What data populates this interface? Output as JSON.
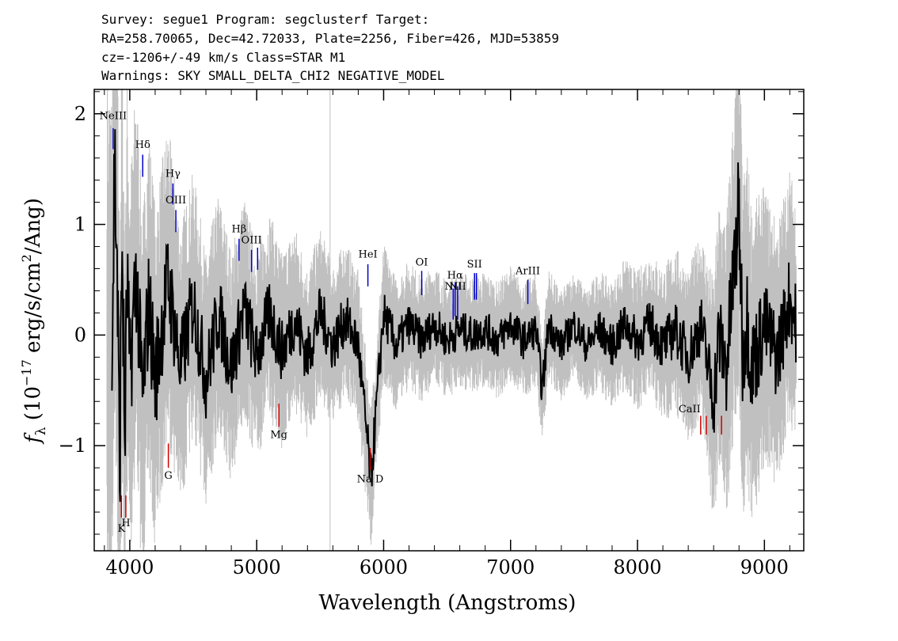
{
  "header": {
    "line1": "Survey: segue1 Program: segclusterf Target:",
    "line2": "RA=258.70065, Dec=42.72033, Plate=2256, Fiber=426, MJD=53859",
    "line3": "cz=-1206+/-49 km/s Class=STAR M1",
    "line4": "Warnings: SKY SMALL_DELTA_CHI2 NEGATIVE_MODEL"
  },
  "chart_data": {
    "type": "line",
    "xlabel": "Wavelength (Angstroms)",
    "ylabel": "f_λ (10^-17 erg/s/cm^2/Ang)",
    "ylabel_parts": {
      "f": "f",
      "sub": "λ",
      "pre": "(10",
      "exp": "−17",
      "mid": " erg/s/cm",
      "exp2": "2",
      "post": "/Ang)"
    },
    "xlim": [
      3720,
      9310
    ],
    "ylim": [
      -1.95,
      2.22
    ],
    "xticks": [
      4000,
      5000,
      6000,
      7000,
      8000,
      9000
    ],
    "xtick_labels": [
      "4000",
      "5000",
      "6000",
      "7000",
      "8000",
      "9000"
    ],
    "yticks": [
      -1,
      0,
      1,
      2
    ],
    "ytick_labels": [
      "−1",
      "0",
      "1",
      "2"
    ],
    "series": [
      {
        "role": "flux",
        "color": "#000000",
        "x": [
          3860,
          3880,
          3900,
          3920,
          3940,
          3960,
          3980,
          4000,
          4050,
          4100,
          4150,
          4200,
          4300,
          4400,
          4500,
          4600,
          4700,
          4800,
          4900,
          5000,
          5100,
          5200,
          5300,
          5400,
          5500,
          5600,
          5700,
          5800,
          5900,
          6000,
          6100,
          6200,
          6300,
          6400,
          6500,
          6600,
          6700,
          6800,
          6900,
          7000,
          7100,
          7200,
          7250,
          7300,
          7400,
          7500,
          7600,
          7700,
          7800,
          7900,
          8000,
          8100,
          8200,
          8300,
          8400,
          8500,
          8600,
          8640,
          8700,
          8800,
          8830,
          8860,
          8900,
          9000,
          9100,
          9200,
          9250
        ],
        "y": [
          -0.2,
          1.6,
          0.7,
          -1.3,
          0.9,
          -1.0,
          0.5,
          -0.4,
          0.6,
          -0.6,
          0.3,
          -0.4,
          0.5,
          -0.3,
          0.3,
          -0.4,
          0.2,
          -0.3,
          0.25,
          -0.2,
          0.2,
          -0.15,
          0.15,
          -0.2,
          0.2,
          -0.1,
          0.15,
          -0.1,
          -1.3,
          0.2,
          -0.1,
          0.1,
          -0.05,
          0.1,
          -0.05,
          0.05,
          0.0,
          0.05,
          -0.05,
          0.1,
          -0.05,
          0.05,
          -0.5,
          0.1,
          -0.1,
          0.1,
          -0.1,
          0.05,
          -0.1,
          0.1,
          -0.05,
          0.1,
          -0.1,
          0.05,
          -0.2,
          0.1,
          -0.6,
          0.0,
          -0.3,
          1.15,
          -0.2,
          0.2,
          -0.3,
          0.1,
          -0.2,
          0.35,
          0.1
        ]
      },
      {
        "role": "error",
        "color": "#c0c0c0",
        "x": [
          3800,
          4000,
          4500,
          5000,
          5500,
          6000,
          6500,
          7000,
          7500,
          8000,
          8500,
          8800,
          9000,
          9300
        ],
        "sigma": [
          2.0,
          1.3,
          0.85,
          0.7,
          0.55,
          0.45,
          0.38,
          0.38,
          0.35,
          0.45,
          0.6,
          1.2,
          0.9,
          0.8
        ]
      }
    ],
    "emission_lines": [
      {
        "label": "NeIII",
        "x": 3869,
        "ytop": 1.87,
        "ybot": 1.68,
        "text_y": 1.95,
        "color": "#0000cc"
      },
      {
        "label": "Hδ",
        "x": 4102,
        "ytop": 1.63,
        "ybot": 1.43,
        "text_y": 1.69,
        "color": "#0000cc"
      },
      {
        "label": "Hγ",
        "x": 4340,
        "ytop": 1.37,
        "ybot": 1.18,
        "text_y": 1.43,
        "color": "#0000cc"
      },
      {
        "label": "OIII",
        "x": 4363,
        "ytop": 1.13,
        "ybot": 0.93,
        "text_y": 1.19,
        "color": "#0000cc"
      },
      {
        "label": "Hβ",
        "x": 4861,
        "ytop": 0.87,
        "ybot": 0.67,
        "text_y": 0.93,
        "color": "#0000cc"
      },
      {
        "label": "OIII",
        "x": 4959,
        "ytop": 0.77,
        "ybot": 0.57,
        "text_y": 0.83,
        "color": "#0000cc"
      },
      {
        "label": "OIII",
        "x": 5007,
        "ytop": 0.79,
        "ybot": 0.59,
        "text_y": null,
        "color": "#0000cc"
      },
      {
        "label": "HeI",
        "x": 5876,
        "ytop": 0.64,
        "ybot": 0.44,
        "text_y": 0.7,
        "color": "#0000cc"
      },
      {
        "label": "OI",
        "x": 6300,
        "ytop": 0.58,
        "ybot": 0.36,
        "text_y": 0.63,
        "color": "#0000cc"
      },
      {
        "label": "NII",
        "x": 6548,
        "ytop": 0.42,
        "ybot": 0.14,
        "text_y": 0.41,
        "color": "#0000cc"
      },
      {
        "label": "Hα",
        "x": 6563,
        "ytop": 0.47,
        "ybot": 0.17,
        "text_y": 0.51,
        "color": "#0000cc"
      },
      {
        "label": "NII",
        "x": 6583,
        "ytop": 0.44,
        "ybot": 0.14,
        "text_y": 0.41,
        "color": "#0000cc"
      },
      {
        "label": "SII",
        "x": 6716,
        "ytop": 0.56,
        "ybot": 0.32,
        "text_y": 0.61,
        "color": "#0000cc"
      },
      {
        "label": "SII",
        "x": 6731,
        "ytop": 0.56,
        "ybot": 0.32,
        "text_y": null,
        "color": "#0000cc"
      },
      {
        "label": "ArIII",
        "x": 7136,
        "ytop": 0.5,
        "ybot": 0.28,
        "text_y": 0.55,
        "color": "#0000cc"
      }
    ],
    "absorption_lines": [
      {
        "label": "K",
        "x": 3934,
        "ytop": -1.45,
        "ybot": -1.65,
        "text_y": -1.78,
        "color": "#cc0000"
      },
      {
        "label": "H",
        "x": 3969,
        "ytop": -1.45,
        "ybot": -1.65,
        "text_y": -1.73,
        "color": "#cc0000"
      },
      {
        "label": "G",
        "x": 4304,
        "ytop": -0.98,
        "ybot": -1.2,
        "text_y": -1.3,
        "color": "#cc0000"
      },
      {
        "label": "Mg",
        "x": 5175,
        "ytop": -0.62,
        "ybot": -0.83,
        "text_y": -0.93,
        "color": "#cc0000"
      },
      {
        "label": "Na D",
        "x": 5894,
        "ytop": -1.02,
        "ybot": -1.22,
        "text_y": -1.33,
        "color": "#cc0000"
      },
      {
        "label": "CaII",
        "x": 8498,
        "ytop": -0.73,
        "ybot": -0.9,
        "text_y": -0.7,
        "color": "#cc0000"
      },
      {
        "label": "CaII",
        "x": 8542,
        "ytop": -0.73,
        "ybot": -0.9,
        "text_y": null,
        "color": "#cc0000"
      },
      {
        "label": "CaII",
        "x": 8662,
        "ytop": -0.73,
        "ybot": -0.9,
        "text_y": null,
        "color": "#cc0000"
      }
    ],
    "grid": false,
    "legend": "none"
  }
}
